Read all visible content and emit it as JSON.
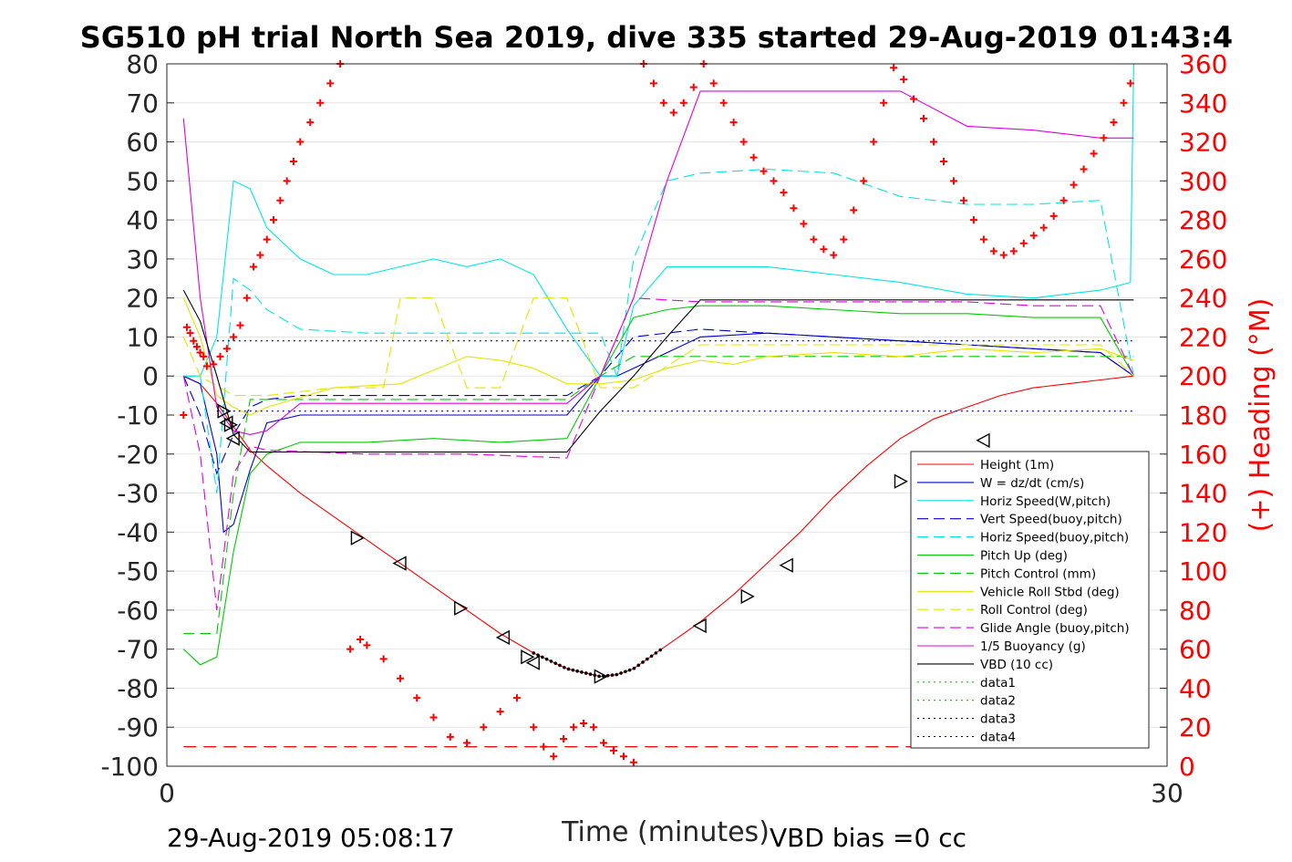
{
  "chart_data": {
    "type": "line",
    "title": "SG510 pH trial North Sea 2019, dive 335 started 29-Aug-2019 01:43:4",
    "xlabel": "Time (minutes)",
    "ylabel_right": "(+) Heading (°M)",
    "xlim": [
      0,
      30
    ],
    "ylim": [
      -100,
      80
    ],
    "ylim_right": [
      0,
      360
    ],
    "xticks": [
      "0",
      "30"
    ],
    "yticks": [
      "80",
      "70",
      "60",
      "50",
      "40",
      "30",
      "20",
      "10",
      "0",
      "-10",
      "-20",
      "-30",
      "-40",
      "-50",
      "-60",
      "-70",
      "-80",
      "-90",
      "-100"
    ],
    "yticks_right": [
      "360",
      "340",
      "320",
      "300",
      "280",
      "260",
      "240",
      "220",
      "200",
      "180",
      "160",
      "140",
      "120",
      "100",
      "80",
      "60",
      "40",
      "20",
      "0"
    ],
    "footer_left": "29-Aug-2019 05:08:17",
    "footer_right": "VBD bias =0 cc",
    "grid": "horizontal",
    "legend_position": "bottom-right",
    "series": [
      {
        "name": "Height (1m)",
        "color": "#ff0000",
        "style": "solid",
        "x": [
          0.5,
          1.0,
          1.5,
          2.0,
          2.5,
          3,
          4,
          5,
          6,
          7,
          8,
          9,
          10,
          11,
          11.5,
          12,
          12.5,
          13,
          13.5,
          14,
          14.5,
          15,
          16,
          17,
          18,
          19,
          20,
          21,
          22,
          23,
          24,
          25,
          26,
          27,
          28,
          29
        ],
        "values": [
          0,
          -2,
          -7,
          -13,
          -19,
          -23,
          -30,
          -36,
          -42,
          -48,
          -54,
          -60,
          -66,
          -71,
          -73,
          -75,
          -76,
          -77,
          -76.5,
          -75,
          -72,
          -69,
          -63,
          -56,
          -48,
          -40,
          -31,
          -23,
          -16,
          -11,
          -8,
          -5,
          -3,
          -2,
          -1,
          0
        ]
      },
      {
        "name": "W = dz/dt (cm/s)",
        "color": "#0000cd",
        "style": "solid",
        "x": [
          0.5,
          1.0,
          1.5,
          1.7,
          2.0,
          2.5,
          3,
          4,
          6,
          8,
          10,
          11,
          12,
          13,
          13.5,
          14,
          15,
          16,
          18,
          20,
          22,
          24,
          26,
          28,
          29
        ],
        "values": [
          0,
          -2,
          -20,
          -40,
          -38,
          -24,
          -12,
          -10,
          -10,
          -10,
          -10,
          -10,
          -10,
          0,
          0,
          2,
          6,
          10,
          11,
          10,
          9,
          8,
          7,
          6,
          0
        ]
      },
      {
        "name": "Horiz Speed(W,pitch)",
        "color": "#00e5e5",
        "style": "solid",
        "x": [
          0.5,
          1.0,
          1.5,
          2.0,
          2.5,
          3,
          4,
          5,
          6,
          7,
          8,
          9,
          10,
          11,
          12,
          13,
          13.5,
          14,
          15,
          16,
          18,
          20,
          22,
          24,
          26,
          28,
          28.9,
          29
        ],
        "values": [
          0,
          0,
          10,
          50,
          48,
          38,
          30,
          26,
          26,
          28,
          30,
          28,
          30,
          26,
          12,
          0,
          0,
          18,
          28,
          28,
          28,
          26,
          24,
          21,
          20,
          22,
          24,
          80
        ]
      },
      {
        "name": "Vert Speed(buoy,pitch)",
        "color": "#0000cd",
        "style": "dashed",
        "x": [
          0.5,
          1.0,
          1.5,
          2.0,
          2.5,
          3,
          4,
          6,
          8,
          10,
          12,
          13,
          14,
          16,
          18,
          20,
          22,
          24,
          26,
          28,
          29
        ],
        "values": [
          0,
          -10,
          -25,
          -15,
          -8,
          -6,
          -5,
          -5,
          -5,
          -5,
          -5,
          0,
          10,
          12,
          11,
          10,
          9,
          8,
          7,
          6,
          0
        ]
      },
      {
        "name": "Horiz Speed(buoy,pitch)",
        "color": "#00e5e5",
        "style": "dashed",
        "x": [
          0.5,
          1.0,
          1.5,
          2.0,
          2.5,
          3,
          4,
          6,
          8,
          10,
          12,
          13,
          13.5,
          14,
          15,
          16,
          18,
          20,
          22,
          24,
          26,
          28,
          29
        ],
        "values": [
          0,
          0,
          -30,
          25,
          22,
          17,
          12,
          11,
          11,
          11,
          11,
          11,
          0,
          30,
          50,
          52,
          53,
          52,
          46,
          44,
          44,
          45,
          0
        ]
      },
      {
        "name": "Pitch Up (deg)",
        "color": "#00cc00",
        "style": "solid",
        "x": [
          0.5,
          1.0,
          1.5,
          2.0,
          2.5,
          3,
          4,
          6,
          8,
          10,
          12,
          13,
          14,
          15,
          16,
          18,
          20,
          22,
          24,
          26,
          28,
          29
        ],
        "values": [
          -70,
          -74,
          -72,
          -45,
          -25,
          -20,
          -17,
          -17,
          -16,
          -17,
          -16,
          0,
          15,
          17,
          18,
          18,
          17,
          16,
          16,
          15,
          15,
          0
        ]
      },
      {
        "name": "Pitch Control (mm)",
        "color": "#00cc00",
        "style": "dashed",
        "x": [
          0.5,
          1.0,
          1.5,
          2.0,
          2.5,
          3,
          6,
          9,
          12,
          13,
          14,
          16,
          20,
          24,
          28,
          29
        ],
        "values": [
          -66,
          -66,
          -66,
          -30,
          -6,
          -6,
          -6,
          -6,
          -6,
          0,
          5,
          5,
          5,
          5,
          5,
          5
        ]
      },
      {
        "name": "Vehicle Roll Stbd (deg)",
        "color": "#e5e500",
        "style": "solid",
        "x": [
          0.5,
          1.0,
          1.5,
          2.0,
          2.5,
          3,
          5,
          7,
          9,
          10,
          11,
          12,
          13,
          14,
          15,
          16,
          17,
          18,
          20,
          22,
          24,
          26,
          28,
          29
        ],
        "values": [
          20,
          10,
          -5,
          -8,
          -10,
          -8,
          -3,
          -2,
          5,
          4,
          2,
          -2,
          -2,
          -1,
          2,
          4,
          3,
          5,
          6,
          5,
          7,
          6,
          7,
          4
        ]
      },
      {
        "name": "Roll Control (deg)",
        "color": "#e5e500",
        "style": "dashed",
        "x": [
          0.5,
          1.0,
          2.0,
          3,
          5,
          6.5,
          7,
          8,
          9,
          10,
          11,
          12,
          13,
          14,
          16,
          18,
          20,
          22,
          24,
          26,
          28,
          29
        ],
        "values": [
          10,
          0,
          -5,
          -5,
          -3,
          -3,
          20,
          20,
          -3,
          -3,
          20,
          20,
          -3,
          -3,
          8,
          8,
          8,
          8,
          8,
          8,
          8,
          0
        ]
      },
      {
        "name": "Glide Angle (buoy,pitch)",
        "color": "#e000e0",
        "style": "dashed",
        "x": [
          0.5,
          1.0,
          1.5,
          2.0,
          2.5,
          3,
          6,
          9,
          12,
          13,
          14,
          16,
          18,
          20,
          22,
          24,
          26,
          28,
          29
        ],
        "values": [
          0,
          -20,
          -60,
          -25,
          -18,
          -19,
          -20,
          -20,
          -21,
          0,
          20,
          19,
          19,
          19,
          19,
          19,
          18,
          18,
          0
        ]
      },
      {
        "name": "1/5 Buoyancy (g)",
        "color": "#e000e0",
        "style": "solid",
        "x": [
          0.5,
          1.0,
          1.5,
          2.0,
          2.5,
          3,
          4,
          6,
          9,
          11,
          12,
          13,
          14,
          15,
          16,
          18,
          20,
          22,
          24,
          26,
          28,
          29
        ],
        "values": [
          66,
          20,
          -8,
          -14,
          -15,
          -14,
          -7,
          -7,
          -7,
          -7,
          -7,
          0,
          20,
          50,
          73,
          73,
          73,
          73,
          64,
          63,
          61,
          61
        ]
      },
      {
        "name": "VBD (10 cc)",
        "color": "#000000",
        "style": "solid",
        "x": [
          0.5,
          1.0,
          1.5,
          2.0,
          2.5,
          4,
          8,
          12,
          13,
          14,
          15,
          16,
          20,
          24,
          28,
          29
        ],
        "values": [
          22,
          14,
          0,
          -15,
          -19.5,
          -19.5,
          -19.5,
          -19.5,
          -9,
          0,
          10,
          19.5,
          19.5,
          19.5,
          19.5,
          19.5
        ]
      },
      {
        "name": "data1",
        "color": "#00cc00",
        "style": "dotted",
        "x": [],
        "values": []
      },
      {
        "name": "data2",
        "color": "#00cc00",
        "style": "dotted",
        "x": [],
        "values": []
      },
      {
        "name": "data3",
        "color": "#000080",
        "style": "dotted",
        "x": [
          1.5,
          29
        ],
        "values": [
          9,
          9
        ]
      },
      {
        "name": "data4",
        "color": "#000080",
        "style": "dotted",
        "x": [
          1.5,
          29
        ],
        "values": [
          -9,
          -9
        ]
      }
    ],
    "reference_line": {
      "color": "#ff0000",
      "style": "dashed",
      "x": [
        0.5,
        23.5
      ],
      "value": -95
    },
    "heading_points": {
      "color": "#ff0000",
      "marker": "+",
      "axis": "right",
      "x": [
        0.5,
        0.6,
        0.7,
        0.8,
        0.9,
        1.0,
        1.1,
        1.2,
        1.4,
        1.6,
        1.8,
        2.0,
        2.2,
        2.4,
        2.6,
        2.8,
        3.0,
        3.2,
        3.4,
        3.6,
        3.8,
        4.0,
        4.3,
        4.6,
        4.9,
        5.2,
        5.5,
        5.8,
        6.0,
        6.5,
        7.0,
        7.5,
        8.0,
        8.5,
        9.0,
        9.5,
        10.0,
        10.5,
        11.0,
        11.3,
        11.6,
        11.9,
        12.2,
        12.5,
        12.8,
        13.1,
        13.4,
        13.7,
        14.0,
        14.3,
        14.6,
        14.9,
        15.2,
        15.5,
        15.8,
        16.1,
        16.4,
        16.7,
        17.0,
        17.3,
        17.6,
        17.9,
        18.2,
        18.5,
        18.8,
        19.1,
        19.4,
        19.7,
        20.0,
        20.3,
        20.6,
        20.9,
        21.2,
        21.5,
        21.8,
        22.1,
        22.4,
        22.7,
        23.0,
        23.3,
        23.6,
        23.9,
        24.2,
        24.5,
        24.8,
        25.1,
        25.4,
        25.7,
        26.0,
        26.3,
        26.6,
        26.9,
        27.2,
        27.5,
        27.8,
        28.1,
        28.4,
        28.7,
        28.9
      ],
      "values": [
        180,
        225,
        222,
        218,
        215,
        212,
        210,
        205,
        206,
        210,
        214,
        220,
        226,
        240,
        256,
        262,
        270,
        280,
        290,
        300,
        310,
        320,
        330,
        340,
        350,
        360,
        60,
        65,
        62,
        55,
        45,
        35,
        25,
        15,
        12,
        20,
        28,
        35,
        20,
        10,
        5,
        14,
        20,
        22,
        20,
        12,
        8,
        5,
        2,
        360,
        350,
        340,
        335,
        340,
        348,
        360,
        350,
        340,
        330,
        320,
        312,
        305,
        300,
        294,
        286,
        278,
        270,
        265,
        262,
        270,
        285,
        300,
        320,
        340,
        358,
        352,
        342,
        332,
        320,
        310,
        300,
        290,
        280,
        270,
        264,
        262,
        264,
        268,
        272,
        276,
        282,
        290,
        298,
        306,
        314,
        322,
        330,
        340,
        350
      ]
    },
    "triangle_markers": {
      "color": "#000000",
      "x": [
        1.7,
        1.8,
        1.9,
        2.0,
        5.7,
        7.0,
        8.8,
        10.1,
        10.8,
        11.0,
        13.0,
        16.0,
        17.4,
        18.6,
        22.0,
        24.5
      ],
      "values": [
        -9,
        -12,
        -12.5,
        -16,
        -41.5,
        -48,
        -59.5,
        -67,
        -72,
        -73.5,
        -77,
        -64,
        -56.5,
        -48.5,
        -27,
        -16.5
      ]
    },
    "dense_dots": {
      "color": "#000000",
      "x_start": 11.0,
      "x_end": 14.8,
      "count": 30
    }
  },
  "legend": {
    "items": [
      {
        "label": "Height (1m)",
        "color": "#ff0000",
        "style": "solid"
      },
      {
        "label": "W = dz/dt (cm/s)",
        "color": "#0000cd",
        "style": "solid"
      },
      {
        "label": "Horiz Speed(W,pitch)",
        "color": "#00e5e5",
        "style": "solid"
      },
      {
        "label": "Vert Speed(buoy,pitch)",
        "color": "#0000cd",
        "style": "dashed"
      },
      {
        "label": "Horiz Speed(buoy,pitch)",
        "color": "#00e5e5",
        "style": "dashed"
      },
      {
        "label": "Pitch Up (deg)",
        "color": "#00cc00",
        "style": "solid"
      },
      {
        "label": "Pitch Control (mm)",
        "color": "#00cc00",
        "style": "dashed"
      },
      {
        "label": "Vehicle Roll Stbd (deg)",
        "color": "#e5e500",
        "style": "solid"
      },
      {
        "label": "Roll Control (deg)",
        "color": "#e5e500",
        "style": "dashed"
      },
      {
        "label": "Glide Angle (buoy,pitch)",
        "color": "#e000e0",
        "style": "dashed"
      },
      {
        "label": "1/5 Buoyancy (g)",
        "color": "#e000e0",
        "style": "solid"
      },
      {
        "label": "VBD (10 cc)",
        "color": "#000000",
        "style": "solid"
      },
      {
        "label": "data1",
        "color": "#00cc00",
        "style": "dotted"
      },
      {
        "label": "data2",
        "color": "#00cc00",
        "style": "dotted"
      },
      {
        "label": "data3",
        "color": "#000080",
        "style": "dotted"
      },
      {
        "label": "data4",
        "color": "#000080",
        "style": "dotted"
      }
    ]
  }
}
